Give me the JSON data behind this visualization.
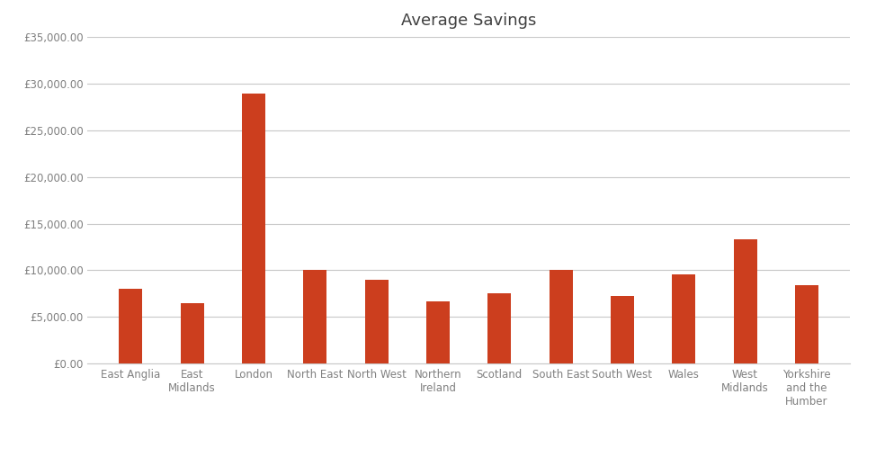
{
  "title": "Average Savings",
  "categories": [
    "East Anglia",
    "East\nMidlands",
    "London",
    "North East",
    "North West",
    "Northern\nIreland",
    "Scotland",
    "South East",
    "South West",
    "Wales",
    "West\nMidlands",
    "Yorkshire\nand the\nHumber"
  ],
  "values": [
    8000,
    6500,
    29000,
    10000,
    9000,
    6700,
    7500,
    10000,
    7200,
    9600,
    13300,
    8400
  ],
  "bar_color": "#cc3e1e",
  "background_color": "#ffffff",
  "ylim": [
    0,
    35000
  ],
  "ytick_step": 5000,
  "grid_color": "#c8c8c8",
  "title_fontsize": 13,
  "tick_fontsize": 8.5,
  "tick_color": "#808080",
  "bar_width": 0.38
}
